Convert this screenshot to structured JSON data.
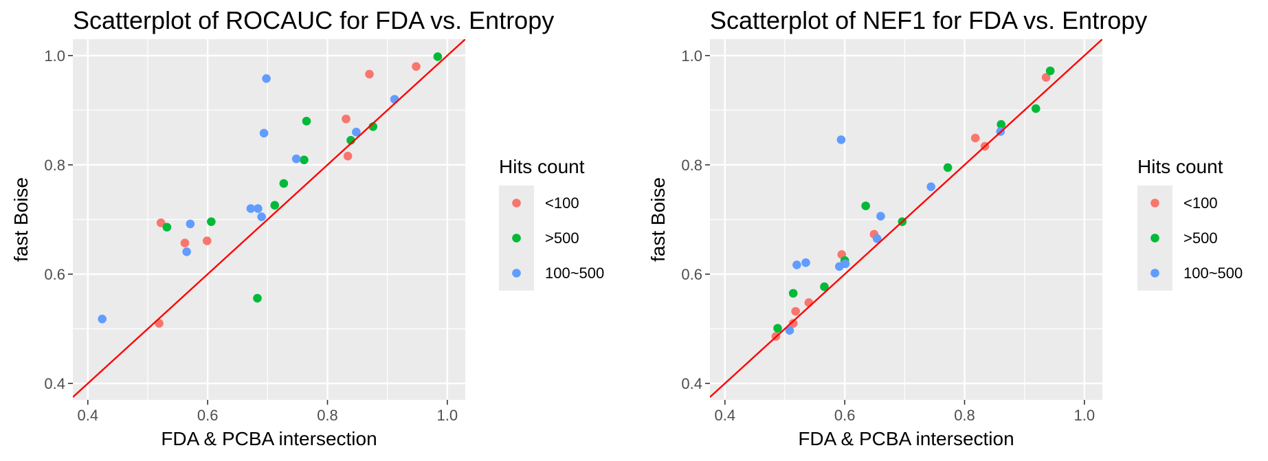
{
  "legend": {
    "title": "Hits count",
    "entries": [
      {
        "label": "<100",
        "color": "#F8766D"
      },
      {
        "label": ">500",
        "color": "#00BA38"
      },
      {
        "label": "100~500",
        "color": "#619CFF"
      }
    ]
  },
  "chart_data": [
    {
      "type": "scatter",
      "title": "Scatterplot of ROCAUC for FDA vs. Entropy",
      "xlabel": "FDA & PCBA intersection",
      "ylabel": "fast Boise",
      "xlim": [
        0.375,
        1.03
      ],
      "ylim": [
        0.37,
        1.03
      ],
      "xticks": [
        0.4,
        0.6,
        0.8,
        1.0
      ],
      "yticks": [
        0.4,
        0.6,
        0.8,
        1.0
      ],
      "xtick_labels": [
        "0.4",
        "0.6",
        "0.8",
        "1.0"
      ],
      "ytick_labels": [
        "0.4",
        "0.6",
        "0.8",
        "1.0"
      ],
      "reference_line": {
        "slope": 1,
        "intercept": 0,
        "color": "#ff0000"
      },
      "grid": true,
      "legend_position": "right",
      "series": [
        {
          "name": "<100",
          "color": "#F8766D",
          "points": [
            [
              0.519,
              0.51
            ],
            [
              0.522,
              0.694
            ],
            [
              0.562,
              0.657
            ],
            [
              0.599,
              0.661
            ],
            [
              0.831,
              0.884
            ],
            [
              0.834,
              0.816
            ],
            [
              0.87,
              0.966
            ],
            [
              0.948,
              0.98
            ]
          ]
        },
        {
          "name": ">500",
          "color": "#00BA38",
          "points": [
            [
              0.532,
              0.686
            ],
            [
              0.606,
              0.696
            ],
            [
              0.683,
              0.556
            ],
            [
              0.712,
              0.726
            ],
            [
              0.727,
              0.766
            ],
            [
              0.761,
              0.809
            ],
            [
              0.765,
              0.88
            ],
            [
              0.839,
              0.845
            ],
            [
              0.876,
              0.87
            ],
            [
              0.984,
              0.998
            ]
          ]
        },
        {
          "name": "100~500",
          "color": "#619CFF",
          "points": [
            [
              0.424,
              0.518
            ],
            [
              0.565,
              0.641
            ],
            [
              0.571,
              0.692
            ],
            [
              0.672,
              0.72
            ],
            [
              0.684,
              0.72
            ],
            [
              0.69,
              0.705
            ],
            [
              0.694,
              0.858
            ],
            [
              0.698,
              0.958
            ],
            [
              0.748,
              0.811
            ],
            [
              0.848,
              0.86
            ],
            [
              0.912,
              0.92
            ]
          ]
        }
      ]
    },
    {
      "type": "scatter",
      "title": "Scatterplot of NEF1 for FDA vs. Entropy",
      "xlabel": "FDA & PCBA intersection",
      "ylabel": "fast Boise",
      "xlim": [
        0.375,
        1.03
      ],
      "ylim": [
        0.37,
        1.03
      ],
      "xticks": [
        0.4,
        0.6,
        0.8,
        1.0
      ],
      "yticks": [
        0.4,
        0.6,
        0.8,
        1.0
      ],
      "xtick_labels": [
        "0.4",
        "0.6",
        "0.8",
        "1.0"
      ],
      "ytick_labels": [
        "0.4",
        "0.6",
        "0.8",
        "1.0"
      ],
      "reference_line": {
        "slope": 1,
        "intercept": 0,
        "color": "#ff0000"
      },
      "grid": true,
      "legend_position": "right",
      "series": [
        {
          "name": "<100",
          "color": "#F8766D",
          "points": [
            [
              0.485,
              0.486
            ],
            [
              0.514,
              0.51
            ],
            [
              0.518,
              0.532
            ],
            [
              0.54,
              0.548
            ],
            [
              0.595,
              0.636
            ],
            [
              0.649,
              0.673
            ],
            [
              0.818,
              0.849
            ],
            [
              0.834,
              0.834
            ],
            [
              0.936,
              0.96
            ]
          ]
        },
        {
          "name": ">500",
          "color": "#00BA38",
          "points": [
            [
              0.488,
              0.501
            ],
            [
              0.514,
              0.565
            ],
            [
              0.566,
              0.577
            ],
            [
              0.6,
              0.625
            ],
            [
              0.635,
              0.725
            ],
            [
              0.696,
              0.696
            ],
            [
              0.772,
              0.795
            ],
            [
              0.861,
              0.874
            ],
            [
              0.919,
              0.903
            ],
            [
              0.943,
              0.972
            ]
          ]
        },
        {
          "name": "100~500",
          "color": "#619CFF",
          "points": [
            [
              0.508,
              0.497
            ],
            [
              0.52,
              0.617
            ],
            [
              0.535,
              0.621
            ],
            [
              0.591,
              0.614
            ],
            [
              0.594,
              0.846
            ],
            [
              0.601,
              0.619
            ],
            [
              0.654,
              0.665
            ],
            [
              0.66,
              0.706
            ],
            [
              0.744,
              0.76
            ],
            [
              0.86,
              0.861
            ]
          ]
        }
      ]
    }
  ]
}
